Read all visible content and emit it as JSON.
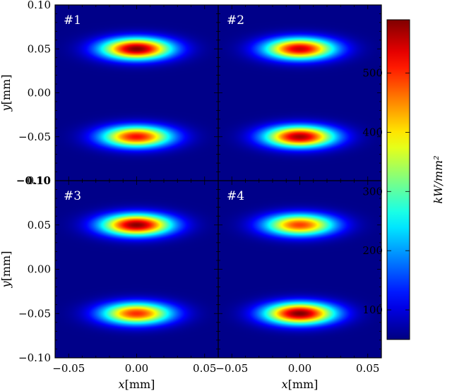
{
  "chart_data": {
    "type": "heatmap",
    "xlabel_var": "x",
    "xlabel_unit": "[mm]",
    "ylabel_var": "y",
    "ylabel_unit": "[mm]",
    "xlim": [
      -0.06,
      0.06
    ],
    "ylim": [
      -0.1,
      0.1
    ],
    "x_ticks": [
      -0.05,
      0.0,
      0.05
    ],
    "x_tick_labels": [
      "−0.05",
      "0.00",
      "0.05"
    ],
    "y_ticks": [
      -0.1,
      -0.05,
      0.0,
      0.05,
      0.1
    ],
    "y_tick_labels": [
      "−0.10",
      "−0.05",
      "0.00",
      "0.05",
      "0.10"
    ],
    "colorbar": {
      "label": "kW/mm²",
      "colormap": "jet",
      "range": [
        50,
        590
      ],
      "ticks": [
        100,
        200,
        300,
        400,
        500
      ],
      "tick_labels": [
        "100",
        "200",
        "300",
        "400",
        "500"
      ]
    },
    "colors": {
      "background_low": "#0a1ff0",
      "peak": "#7f0000",
      "panel_label": "#ffffff"
    },
    "panels": [
      {
        "label": "#1",
        "spots": [
          {
            "x": 0.0,
            "y": 0.05,
            "peak": 590
          },
          {
            "x": 0.0,
            "y": -0.05,
            "peak": 520
          }
        ]
      },
      {
        "label": "#2",
        "spots": [
          {
            "x": 0.0,
            "y": 0.05,
            "peak": 550
          },
          {
            "x": 0.0,
            "y": -0.05,
            "peak": 570
          }
        ]
      },
      {
        "label": "#3",
        "spots": [
          {
            "x": 0.0,
            "y": 0.05,
            "peak": 585
          },
          {
            "x": 0.0,
            "y": -0.05,
            "peak": 500
          }
        ]
      },
      {
        "label": "#4",
        "spots": [
          {
            "x": 0.0,
            "y": 0.05,
            "peak": 490
          },
          {
            "x": 0.0,
            "y": -0.05,
            "peak": 590
          }
        ]
      }
    ],
    "spot_sigma_x": 0.018,
    "spot_sigma_y": 0.0085,
    "background_floor": 55
  }
}
